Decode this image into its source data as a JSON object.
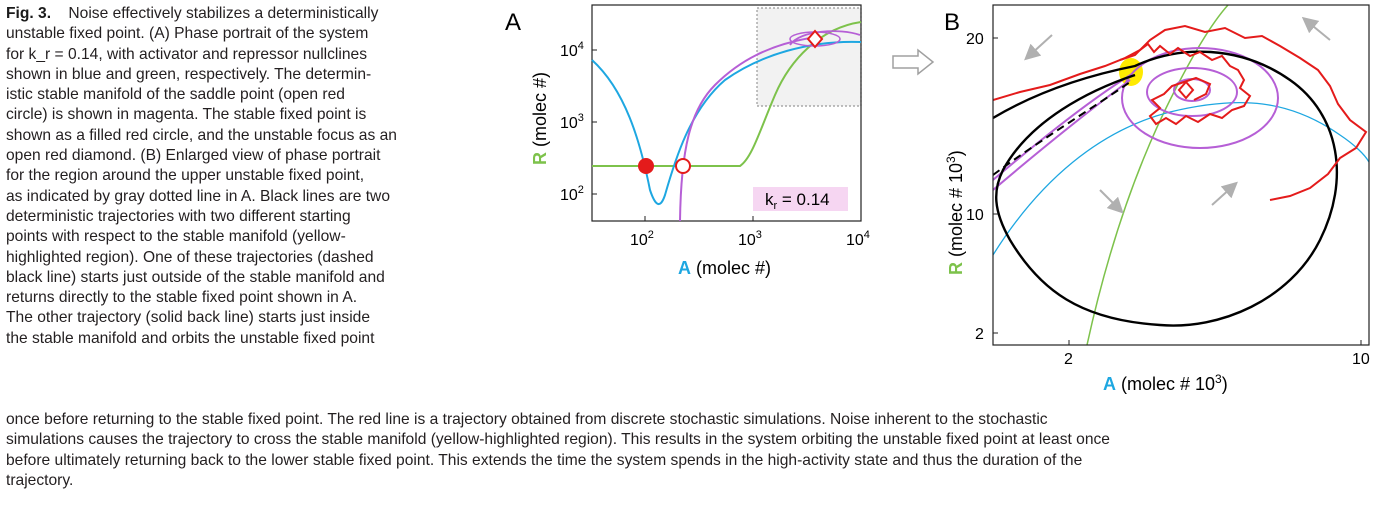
{
  "caption": {
    "label": "Fig. 3.",
    "lines": [
      "Noise effectively stabilizes a deterministically",
      "unstable fixed point. (A) Phase portrait of the system",
      "for k_r = 0.14, with activator and repressor nullclines",
      "shown in blue and green, respectively. The determin-",
      "istic stable manifold of the saddle point (open red",
      "circle) is shown in magenta. The stable fixed point is",
      "shown as a filled red circle, and the unstable focus as an",
      "open red diamond. (B) Enlarged view of phase portrait",
      "for the region around the upper unstable fixed point,",
      "as indicated by gray dotted line in A. Black lines are two",
      "deterministic trajectories with two different starting",
      "points with respect to the stable manifold (yellow-",
      "highlighted region). One of these trajectories (dashed",
      "black line) starts just outside of the stable manifold and",
      "returns directly to the stable fixed point shown in A.",
      "The other trajectory (solid back line) starts just inside",
      "the stable manifold and orbits the unstable fixed point"
    ],
    "continuation": [
      "once before returning to the stable fixed point. The red line is a trajectory obtained from discrete stochastic simulations. Noise inherent to the stochastic",
      "simulations causes the trajectory to cross the stable manifold (yellow-highlighted region). This results in the system orbiting the unstable fixed point at least once",
      "before ultimately returning back to the lower stable fixed point. This extends the time the system spends in the high-activity state and thus the duration of the",
      "trajectory."
    ]
  },
  "panelA": {
    "label": "A",
    "xlabel_bold": "A",
    "xlabel_rest": " (molec #)",
    "ylabel_bold": "R",
    "ylabel_rest": " (molec #)",
    "kr_label": "k",
    "kr_sub": "r",
    "kr_value": " = 0.14",
    "xticks": [
      "10",
      "10",
      "10"
    ],
    "xtick_exp": [
      "2",
      "3",
      "4"
    ],
    "yticks": [
      "10",
      "10",
      "10"
    ],
    "ytick_exp": [
      "2",
      "3",
      "4"
    ]
  },
  "panelB": {
    "label": "B",
    "xlabel_bold": "A",
    "xlabel_rest": " (molec # 10",
    "xlabel_exp": "3",
    "xlabel_close": ")",
    "ylabel_bold": "R",
    "ylabel_rest": " (molec # 10",
    "ylabel_exp": "3",
    "ylabel_close": ")",
    "xticks": [
      "2",
      "10"
    ],
    "yticks": [
      "20",
      "10",
      "2"
    ]
  },
  "colors": {
    "activator_nullcline": "#1ea7e1",
    "repressor_nullcline": "#7dc24b",
    "stable_manifold": "#b65fd6",
    "fixed_points": "#e41b1b",
    "stochastic_trajectory": "#e41b1b",
    "deterministic_trajectory": "#000000",
    "highlight": "#ffea00",
    "arrow_color": "#b0b0b0",
    "kr_box": "#f6d6f2"
  }
}
